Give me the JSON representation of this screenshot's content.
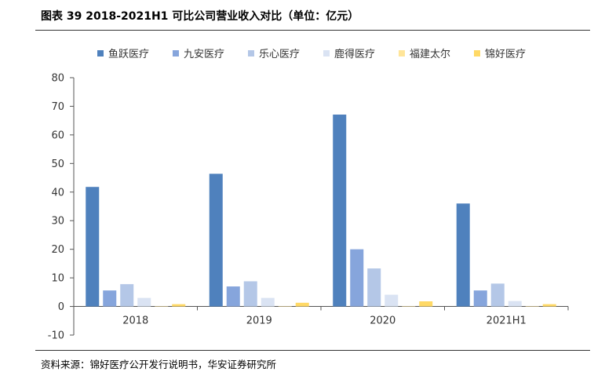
{
  "header": {
    "title": "图表 39 2018-2021H1 可比公司营业收入对比（单位：亿元）"
  },
  "footer": {
    "source": "资料来源：锦好医疗公开发行说明书，华安证券研究所"
  },
  "chart_data": {
    "type": "bar",
    "categories": [
      "2018",
      "2019",
      "2020",
      "2021H1"
    ],
    "series": [
      {
        "name": "鱼跃医疗",
        "color": "#4f81bd",
        "values": [
          41.8,
          46.4,
          67.1,
          36.0
        ]
      },
      {
        "name": "九安医疗",
        "color": "#86a5dc",
        "values": [
          5.6,
          7.0,
          20.0,
          5.6
        ]
      },
      {
        "name": "乐心医疗",
        "color": "#b4c7e7",
        "values": [
          7.8,
          8.8,
          13.3,
          8.0
        ]
      },
      {
        "name": "鹿得医疗",
        "color": "#dae3f3",
        "values": [
          3.0,
          3.0,
          4.1,
          1.9
        ]
      },
      {
        "name": "福建太尔",
        "color": "#ffe599",
        "values": [
          0.1,
          0.1,
          0.1,
          0.1
        ]
      },
      {
        "name": "锦好医疗",
        "color": "#ffd966",
        "values": [
          0.8,
          1.3,
          1.8,
          0.8
        ]
      }
    ],
    "ylim": [
      -10,
      80
    ],
    "yticks": [
      -10,
      0,
      10,
      20,
      30,
      40,
      50,
      60,
      70,
      80
    ],
    "legend_position": "top",
    "grid": false
  }
}
